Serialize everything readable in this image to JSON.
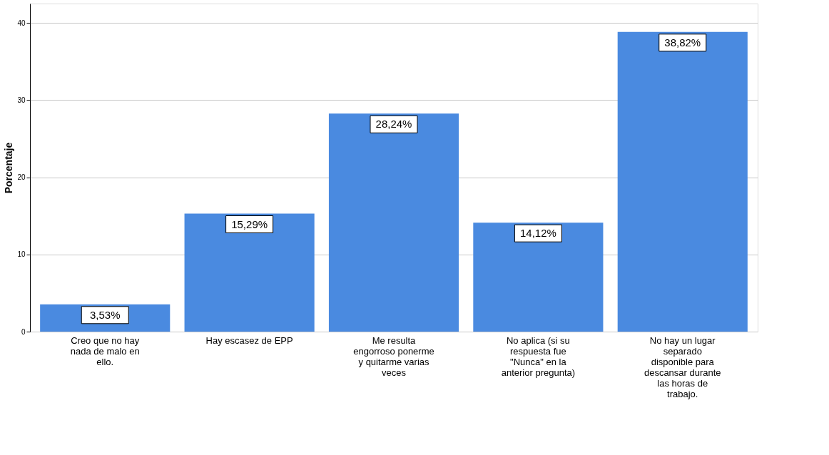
{
  "chart_data": {
    "type": "bar",
    "ylabel": "Porcentaje",
    "categories": [
      "Creo que no hay nada de malo en ello.",
      "Hay escasez de EPP",
      "Me resulta engorroso ponerme y quitarme varias veces",
      "No aplica (si su respuesta fue \"Nunca\" en la anterior pregunta)",
      "No hay un lugar separado disponible para descansar durante las horas de trabajo."
    ],
    "values": [
      3.53,
      15.29,
      28.24,
      14.12,
      38.82
    ],
    "value_labels": [
      "3,53%",
      "15,29%",
      "28,24%",
      "14,12%",
      "38,82%"
    ],
    "color": "#4a8ae0",
    "ylim": [
      0,
      42.5
    ],
    "yticks": [
      0,
      10,
      20,
      30,
      40
    ],
    "grid": "y"
  }
}
